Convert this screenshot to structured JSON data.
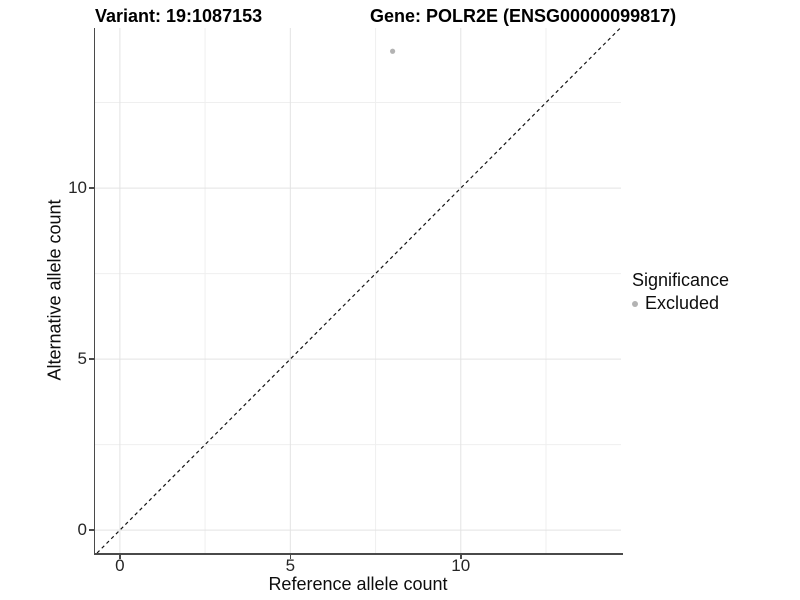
{
  "figure": {
    "title_left": "Variant: 19:1087153",
    "title_right": "Gene: POLR2E (ENSG00000099817)"
  },
  "chart_data": {
    "type": "scatter",
    "title": "Variant: 19:1087153   |   Gene: POLR2E (ENSG00000099817)",
    "xlabel": "Reference allele count",
    "ylabel": "Alternative allele count",
    "xlim": [
      -0.73,
      14.7
    ],
    "ylim": [
      -0.67,
      14.68
    ],
    "x_ticks": [
      0,
      5,
      10
    ],
    "y_ticks": [
      0,
      5,
      10
    ],
    "x_minor_grid": [
      2.5,
      7.5,
      12.5
    ],
    "y_minor_grid": [
      2.5,
      7.5,
      12.5
    ],
    "grid": "on",
    "series": [
      {
        "name": "Excluded",
        "color": "#b3b3b3",
        "points": [
          [
            8,
            14
          ]
        ]
      }
    ],
    "reference_line": {
      "kind": "identity y = x",
      "style": "dashed",
      "color": "#141414"
    },
    "legend": {
      "position": "right",
      "title": "Significance",
      "entries": [
        {
          "label": "Excluded",
          "marker_color": "#b3b3b3"
        }
      ]
    }
  },
  "colors": {
    "grid_major": "#e3e3e3",
    "grid_minor": "#efefef",
    "axis": "#4a4a4a",
    "point": "#b3b3b3"
  }
}
